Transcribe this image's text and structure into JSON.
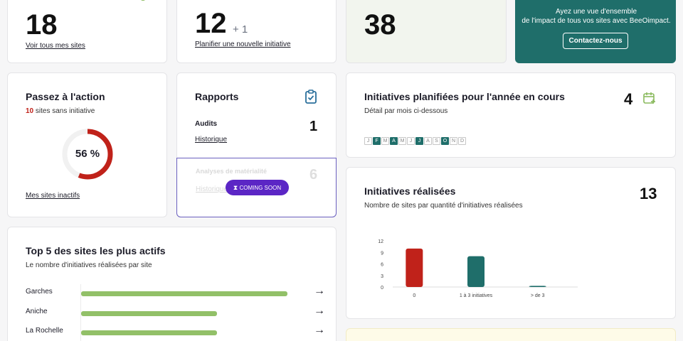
{
  "stats": {
    "sites": {
      "value": "18",
      "link": "Voir tous mes sites"
    },
    "initiatives": {
      "value": "12",
      "delta": "+ 1",
      "link": "Planifier une nouvelle initiative"
    },
    "third": {
      "value": "38"
    }
  },
  "promo": {
    "text_line1": "Ayez une vue d'ensemble",
    "text_line2": "de l'impact de tous vos sites avec BeeOimpact.",
    "button": "Contactez-nous"
  },
  "action": {
    "title": "Passez à l'action",
    "count": "10",
    "count_suffix": "sites sans initiative",
    "gauge_percent": 56,
    "gauge_label": "56 %",
    "link": "Mes sites inactifs"
  },
  "reports": {
    "title": "Rapports",
    "audits_label": "Audits",
    "audits_count": "1",
    "audits_link": "Historique",
    "materiality_label": "Analyses de matérialité",
    "materiality_count": "6",
    "materiality_link": "Historique",
    "coming_soon": "COMING SOON"
  },
  "planned": {
    "title": "Initiatives planifiées pour l'année en cours",
    "subtitle": "Détail par mois ci-dessous",
    "count": "4",
    "months": [
      {
        "l": "J",
        "a": false
      },
      {
        "l": "F",
        "a": true
      },
      {
        "l": "M",
        "a": false
      },
      {
        "l": "A",
        "a": true
      },
      {
        "l": "M",
        "a": false
      },
      {
        "l": "J",
        "a": false
      },
      {
        "l": "J",
        "a": true
      },
      {
        "l": "A",
        "a": false
      },
      {
        "l": "S",
        "a": false
      },
      {
        "l": "O",
        "a": true
      },
      {
        "l": "N",
        "a": false
      },
      {
        "l": "D",
        "a": false
      }
    ]
  },
  "realized": {
    "title": "Initiatives réalisées",
    "subtitle": "Nombre de sites par quantité d'initiatives réalisées",
    "count": "13"
  },
  "top5": {
    "title": "Top 5 des sites les plus actifs",
    "subtitle": "Le nombre d'initiatives réalisées par site",
    "rows": [
      {
        "name": "Garches",
        "value": 1.0
      },
      {
        "name": "Aniche",
        "value": 0.66
      },
      {
        "name": "La Rochelle",
        "value": 0.66
      }
    ],
    "arrow": "→"
  },
  "chart_data": {
    "type": "bar",
    "categories": [
      "0",
      "1 à 3 initiatives",
      "> de 3"
    ],
    "values": [
      10,
      8,
      0.3
    ],
    "colors": [
      "#c0221a",
      "#1f6e6a",
      "#1f6e6a"
    ],
    "yticks": [
      "12",
      "9",
      "6",
      "3",
      "0"
    ],
    "ylim": [
      0,
      12
    ]
  }
}
